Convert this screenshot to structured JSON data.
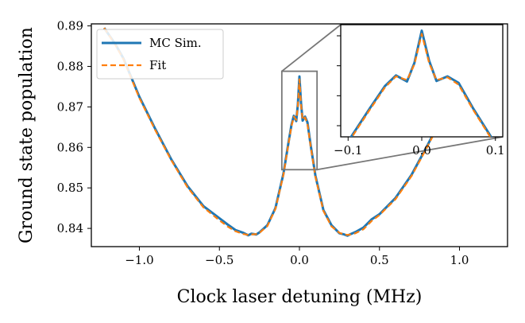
{
  "chart_data": {
    "type": "line",
    "title": "",
    "xlabel": "Clock laser detuning (MHz)",
    "ylabel": "Ground state population",
    "xlim": [
      -1.3,
      1.3
    ],
    "ylim": [
      0.8355,
      0.8905
    ],
    "xticks": [
      -1.0,
      -0.5,
      0.0,
      0.5,
      1.0
    ],
    "xtick_labels": [
      "−1.0",
      "−0.5",
      "0.0",
      "0.5",
      "1.0"
    ],
    "yticks": [
      0.84,
      0.85,
      0.86,
      0.87,
      0.88,
      0.89
    ],
    "ytick_labels": [
      "0.84",
      "0.85",
      "0.86",
      "0.87",
      "0.88",
      "0.89"
    ],
    "legend_position": "upper-left",
    "series": [
      {
        "name": "MC Sim.",
        "color": "#1f77b4",
        "style": "solid",
        "x": [
          -1.22,
          -1.15,
          -1.1,
          -1.0,
          -0.9,
          -0.8,
          -0.7,
          -0.6,
          -0.5,
          -0.45,
          -0.4,
          -0.35,
          -0.32,
          -0.3,
          -0.27,
          -0.25,
          -0.2,
          -0.15,
          -0.1,
          -0.07,
          -0.05,
          -0.035,
          -0.02,
          -0.01,
          0.0,
          0.01,
          0.02,
          0.035,
          0.05,
          0.07,
          0.1,
          0.15,
          0.2,
          0.25,
          0.28,
          0.3,
          0.32,
          0.35,
          0.4,
          0.45,
          0.5,
          0.6,
          0.7,
          0.8,
          0.9,
          1.0,
          1.1,
          1.2
        ],
        "y": [
          0.8895,
          0.8855,
          0.882,
          0.8725,
          0.8645,
          0.857,
          0.8505,
          0.8455,
          0.8425,
          0.841,
          0.8396,
          0.8389,
          0.8383,
          0.8387,
          0.8385,
          0.839,
          0.8408,
          0.845,
          0.8535,
          0.8608,
          0.8655,
          0.8678,
          0.8665,
          0.8705,
          0.8775,
          0.871,
          0.8666,
          0.8676,
          0.8662,
          0.8606,
          0.853,
          0.8445,
          0.8408,
          0.8388,
          0.8385,
          0.8382,
          0.8386,
          0.8391,
          0.8402,
          0.8422,
          0.8435,
          0.8475,
          0.8532,
          0.8605,
          0.8683,
          0.8762,
          0.8822,
          0.8878
        ]
      },
      {
        "name": "Fit",
        "color": "#ff7f0e",
        "style": "dashed",
        "x": [
          -1.22,
          -1.15,
          -1.1,
          -1.0,
          -0.9,
          -0.8,
          -0.7,
          -0.6,
          -0.5,
          -0.45,
          -0.4,
          -0.35,
          -0.32,
          -0.3,
          -0.27,
          -0.25,
          -0.2,
          -0.15,
          -0.1,
          -0.07,
          -0.05,
          -0.035,
          -0.02,
          -0.01,
          0.0,
          0.01,
          0.02,
          0.035,
          0.05,
          0.07,
          0.1,
          0.15,
          0.2,
          0.25,
          0.28,
          0.3,
          0.32,
          0.35,
          0.4,
          0.45,
          0.5,
          0.6,
          0.7,
          0.8,
          0.9,
          1.0,
          1.1,
          1.2
        ],
        "y": [
          0.8895,
          0.8853,
          0.8818,
          0.8722,
          0.8642,
          0.8568,
          0.8502,
          0.8452,
          0.842,
          0.8405,
          0.8393,
          0.8386,
          0.8384,
          0.8385,
          0.8386,
          0.8389,
          0.8406,
          0.8448,
          0.8532,
          0.8605,
          0.8652,
          0.8676,
          0.8668,
          0.8702,
          0.8768,
          0.8705,
          0.8668,
          0.8674,
          0.8658,
          0.8603,
          0.8527,
          0.8443,
          0.8405,
          0.8389,
          0.8385,
          0.8384,
          0.8385,
          0.8388,
          0.8398,
          0.8418,
          0.8433,
          0.8472,
          0.8529,
          0.8602,
          0.868,
          0.8758,
          0.8818,
          0.8874
        ]
      }
    ],
    "inset": {
      "xlim": [
        -0.11,
        0.11
      ],
      "ylim": [
        0.8545,
        0.8788
      ],
      "xticks": [
        -0.1,
        0.0,
        0.1
      ],
      "xtick_labels": [
        "−0.1",
        "0.0",
        "0.1"
      ],
      "ytick_count": 4
    }
  }
}
